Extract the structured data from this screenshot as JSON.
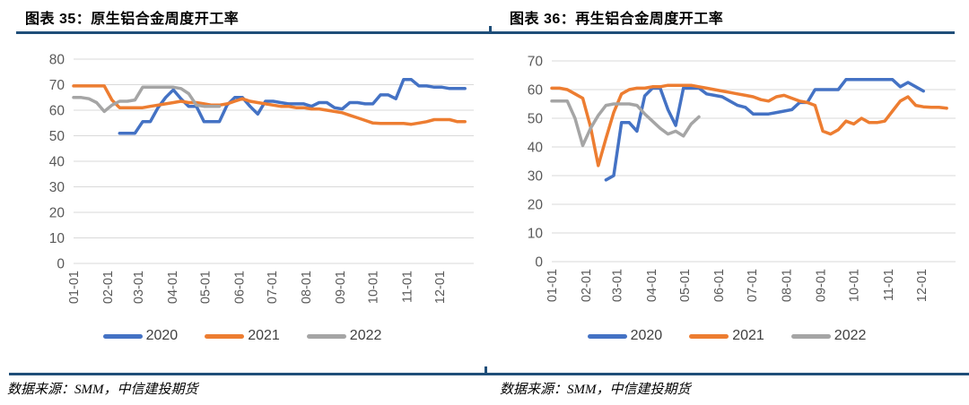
{
  "style": {
    "rule_color": "#1F4E79",
    "grid_color": "#D9D9D9",
    "axis_label_color": "#595959",
    "legend_text_color": "#404040",
    "background": "#ffffff"
  },
  "chart_data": [
    {
      "id": "left",
      "type": "line",
      "title": "图表 35：原生铝合金周度开工率",
      "source": "数据来源：SMM，中信建投期货",
      "y_axis": {
        "max": 80,
        "ticks": [
          0,
          10,
          20,
          30,
          40,
          50,
          60,
          70,
          80
        ]
      },
      "x_axis": {
        "labels": [
          "01-01",
          "02-01",
          "03-01",
          "04-01",
          "05-01",
          "06-01",
          "07-01",
          "08-01",
          "09-01",
          "10-01",
          "11-01",
          "12-01"
        ]
      },
      "legend_position": "bottom",
      "grid": "horizontal",
      "series": [
        {
          "name": "2020",
          "color": "#4472C4",
          "start_week": 7,
          "values": [
            51,
            51,
            51,
            55.5,
            55.5,
            61,
            65,
            68,
            64.5,
            61.5,
            61.5,
            55.5,
            55.5,
            55.5,
            62,
            65,
            65,
            61.5,
            58.5,
            63.5,
            63.5,
            63,
            62.5,
            62.5,
            62.5,
            61.5,
            63,
            63,
            61,
            60.5,
            63,
            63,
            62.5,
            62.5,
            66,
            66,
            64.5,
            72,
            72,
            69.5,
            69.5,
            69,
            69,
            68.5,
            68.5,
            68.5
          ]
        },
        {
          "name": "2021",
          "color": "#ED7D31",
          "start_week": 1,
          "values": [
            69.5,
            69.5,
            69.5,
            69.5,
            69.5,
            64,
            61,
            61,
            61,
            61,
            61.5,
            62,
            62.5,
            63,
            63.5,
            63,
            63,
            62.5,
            62,
            62,
            62.5,
            63.5,
            64.5,
            63.5,
            63,
            62.5,
            62,
            61.5,
            61.5,
            61,
            61,
            60.5,
            60.5,
            60,
            59.5,
            59,
            58,
            57,
            56,
            55,
            54.8,
            54.8,
            54.8,
            54.8,
            54.5,
            55,
            55.5,
            56.3,
            56.3,
            56.3,
            55.5,
            55.5
          ]
        },
        {
          "name": "2022",
          "color": "#A5A5A5",
          "start_week": 1,
          "values": [
            65,
            65,
            64.5,
            63,
            59.5,
            62,
            63.5,
            63.5,
            64,
            69,
            69,
            69,
            69,
            69,
            68.5,
            66.5,
            62,
            61.5,
            61.5,
            61.5
          ]
        }
      ]
    },
    {
      "id": "right",
      "type": "line",
      "title": "图表 36：再生铝合金周度开工率",
      "source": "数据来源：SMM，中信建投期货",
      "y_axis": {
        "max": 70,
        "ticks": [
          0,
          10,
          20,
          30,
          40,
          50,
          60,
          70
        ]
      },
      "x_axis": {
        "labels": [
          "01-01",
          "02-01",
          "03-01",
          "04-01",
          "05-01",
          "06-01",
          "07-01",
          "08-01",
          "09-01",
          "10-01",
          "11-01",
          "12-01"
        ]
      },
      "legend_position": "bottom",
      "grid": "horizontal",
      "series": [
        {
          "name": "2020",
          "color": "#4472C4",
          "start_week": 8,
          "values": [
            28.5,
            30,
            48.5,
            48.5,
            45.5,
            57.8,
            60.5,
            60.5,
            53,
            47.5,
            60.5,
            60.5,
            60.5,
            58.5,
            58,
            57.5,
            56,
            54.5,
            53.8,
            51.5,
            51.5,
            51.5,
            52,
            52.5,
            53,
            55.5,
            55.5,
            60,
            60,
            60,
            60,
            63.5,
            63.5,
            63.5,
            63.5,
            63.5,
            63.5,
            63.5,
            61,
            62.5,
            61,
            59.5
          ]
        },
        {
          "name": "2021",
          "color": "#ED7D31",
          "start_week": 1,
          "values": [
            60.5,
            60.5,
            60,
            58.5,
            57,
            47,
            33.5,
            43,
            52,
            58.5,
            60,
            60.5,
            60.5,
            61,
            61,
            61.5,
            61.5,
            61.5,
            61.5,
            61,
            60.5,
            60,
            59.5,
            59,
            58.5,
            58,
            57.5,
            56.5,
            56,
            57.5,
            58,
            57,
            56,
            55.5,
            54.5,
            45.5,
            44.5,
            46,
            49,
            48,
            50,
            48.5,
            48.5,
            49,
            52.5,
            56,
            57.5,
            54.5,
            54,
            53.8,
            53.8,
            53.5
          ]
        },
        {
          "name": "2022",
          "color": "#A5A5A5",
          "start_week": 1,
          "values": [
            56,
            56,
            56,
            50,
            40.5,
            46.5,
            51,
            54.5,
            55,
            55,
            55,
            54.5,
            51.5,
            49,
            46.5,
            44.5,
            45.5,
            43.8,
            48,
            50.5
          ]
        }
      ]
    }
  ]
}
